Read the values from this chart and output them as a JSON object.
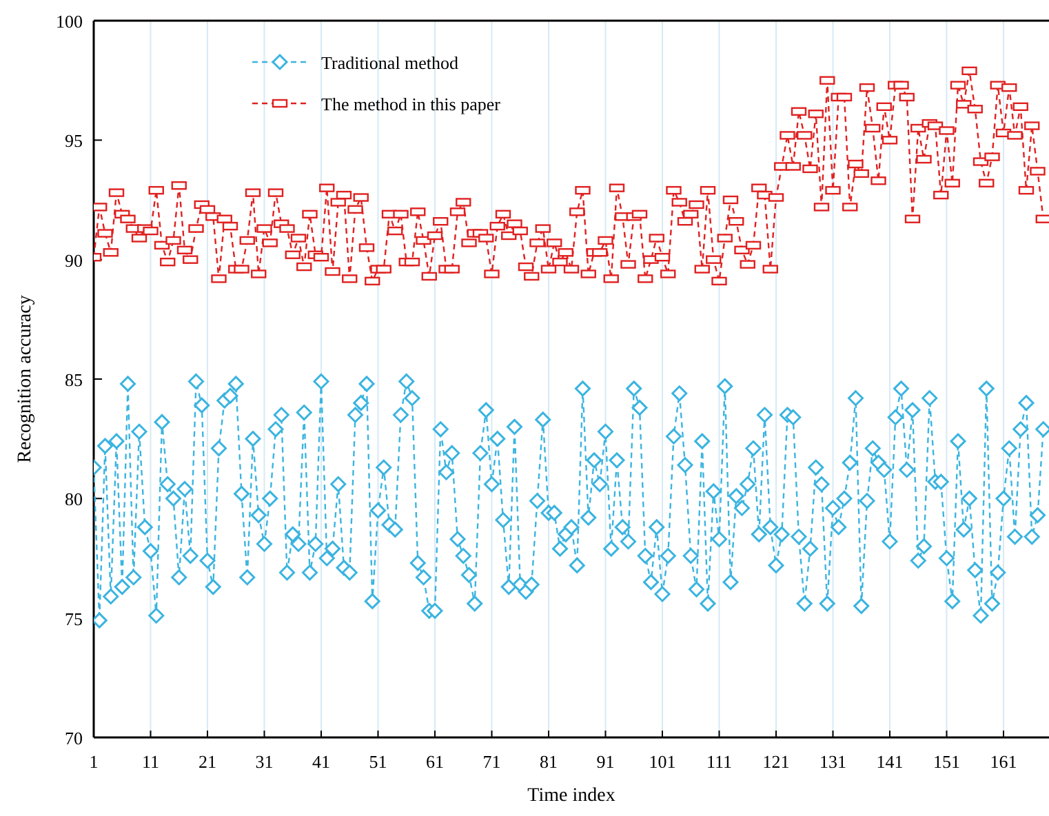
{
  "chart_data": {
    "type": "line",
    "xlabel": "Time index",
    "ylabel": "Recognition accuracy",
    "x": [
      1,
      2,
      3,
      4,
      5,
      6,
      7,
      8,
      9,
      10,
      11,
      12,
      13,
      14,
      15,
      16,
      17,
      18,
      19,
      20,
      21,
      22,
      23,
      24,
      25,
      26,
      27,
      28,
      29,
      30,
      31,
      32,
      33,
      34,
      35,
      36,
      37,
      38,
      39,
      40,
      41,
      42,
      43,
      44,
      45,
      46,
      47,
      48,
      49,
      50,
      51,
      52,
      53,
      54,
      55,
      56,
      57,
      58,
      59,
      60,
      61,
      62,
      63,
      64,
      65,
      66,
      67,
      68,
      69,
      70,
      71,
      72,
      73,
      74,
      75,
      76,
      77,
      78,
      79,
      80,
      81,
      82,
      83,
      84,
      85,
      86,
      87,
      88,
      89,
      90,
      91,
      92,
      93,
      94,
      95,
      96,
      97,
      98,
      99,
      100,
      101,
      102,
      103,
      104,
      105,
      106,
      107,
      108,
      109,
      110,
      111,
      112,
      113,
      114,
      115,
      116,
      117,
      118,
      119,
      120,
      121,
      122,
      123,
      124,
      125,
      126,
      127,
      128,
      129,
      130,
      131,
      132,
      133,
      134,
      135,
      136,
      137,
      138,
      139,
      140,
      141,
      142,
      143,
      144,
      145,
      146,
      147,
      148,
      149,
      150,
      151,
      152,
      153,
      154,
      155,
      156,
      157,
      158,
      159,
      160,
      161,
      162,
      163,
      164,
      165,
      166,
      167,
      168
    ],
    "series": [
      {
        "name": "Traditional method",
        "color": "#3bb4e0",
        "marker": "diamond",
        "values": [
          81.3,
          74.9,
          82.2,
          75.9,
          82.4,
          76.3,
          84.8,
          76.7,
          82.8,
          78.8,
          77.8,
          75.1,
          83.2,
          80.6,
          80.0,
          76.7,
          80.4,
          77.6,
          84.9,
          83.9,
          77.4,
          76.3,
          82.1,
          84.1,
          84.3,
          84.8,
          80.2,
          76.7,
          82.5,
          79.3,
          78.1,
          80.0,
          82.9,
          83.5,
          76.9,
          78.5,
          78.1,
          83.6,
          76.9,
          78.1,
          84.9,
          77.5,
          77.9,
          80.6,
          77.1,
          76.9,
          83.5,
          84.0,
          84.8,
          75.7,
          79.5,
          81.3,
          78.9,
          78.7,
          83.5,
          84.9,
          84.2,
          77.3,
          76.7,
          75.3,
          75.3,
          82.9,
          81.1,
          81.9,
          78.3,
          77.6,
          76.8,
          75.6,
          81.9,
          83.7,
          80.6,
          82.5,
          79.1,
          76.3,
          83.0,
          76.4,
          76.1,
          76.4,
          79.9,
          83.3,
          79.4,
          79.4,
          77.9,
          78.5,
          78.8,
          77.2,
          84.6,
          79.2,
          81.6,
          80.6,
          82.8,
          77.9,
          81.6,
          78.8,
          78.2,
          84.6,
          83.8,
          77.6,
          76.5,
          78.8,
          76.0,
          77.6,
          82.6,
          84.4,
          81.4,
          77.6,
          76.2,
          82.4,
          75.6,
          80.3,
          78.3,
          84.7,
          76.5,
          80.1,
          79.6,
          80.6,
          82.1,
          78.5,
          83.5,
          78.8,
          77.2,
          78.5,
          83.5,
          83.4,
          78.4,
          75.6,
          77.9,
          81.3,
          80.6,
          75.6,
          79.6,
          78.8,
          80.0,
          81.5,
          84.2,
          75.5,
          79.9,
          82.1,
          81.5,
          81.2,
          78.2,
          83.4,
          84.6,
          81.2,
          83.7,
          77.4,
          78.0,
          84.2,
          80.7,
          80.7,
          77.5,
          75.7,
          82.4,
          78.7,
          80.0,
          77.0,
          75.1,
          84.6,
          75.6,
          76.9,
          80.0,
          82.1,
          78.4,
          82.9,
          84.0,
          78.4,
          79.3,
          82.9
        ]
      },
      {
        "name": "The method in this paper",
        "color": "#e02020",
        "marker": "square",
        "values": [
          90.1,
          92.2,
          91.1,
          90.3,
          92.8,
          91.9,
          91.7,
          91.3,
          90.9,
          91.3,
          91.2,
          92.9,
          90.6,
          89.9,
          90.8,
          93.1,
          90.4,
          90.0,
          91.3,
          92.3,
          92.1,
          91.8,
          89.2,
          91.7,
          91.4,
          89.6,
          89.6,
          90.8,
          92.8,
          89.4,
          91.3,
          90.7,
          92.8,
          91.5,
          91.3,
          90.2,
          90.9,
          89.7,
          91.9,
          90.2,
          90.1,
          93.0,
          89.5,
          92.4,
          92.7,
          89.2,
          92.1,
          92.6,
          90.5,
          89.1,
          89.6,
          89.6,
          91.9,
          91.2,
          91.9,
          89.9,
          89.9,
          92.0,
          90.8,
          89.3,
          91.0,
          91.6,
          89.6,
          89.6,
          92.0,
          92.4,
          90.7,
          91.1,
          91.1,
          90.9,
          89.4,
          91.4,
          91.9,
          91.0,
          91.5,
          91.2,
          89.7,
          89.3,
          90.7,
          91.3,
          89.6,
          90.7,
          89.9,
          90.3,
          89.6,
          92.0,
          92.9,
          89.4,
          90.3,
          90.3,
          90.8,
          89.2,
          93.0,
          91.8,
          89.8,
          91.8,
          91.9,
          89.2,
          90.0,
          90.9,
          90.1,
          89.4,
          92.9,
          92.4,
          91.6,
          91.9,
          92.3,
          89.6,
          92.9,
          90.0,
          89.1,
          90.9,
          92.5,
          91.6,
          90.4,
          89.8,
          90.6,
          93.0,
          92.7,
          89.6,
          92.6,
          93.9,
          95.2,
          93.9,
          96.2,
          95.2,
          93.8,
          96.1,
          92.2,
          97.5,
          92.9,
          96.8,
          96.8,
          92.2,
          94.0,
          93.6,
          97.2,
          95.5,
          93.3,
          96.4,
          95.0,
          97.3,
          97.3,
          96.8,
          91.7,
          95.5,
          94.2,
          95.7,
          95.6,
          92.7,
          95.4,
          93.2,
          97.3,
          96.5,
          97.9,
          96.3,
          94.1,
          93.2,
          94.3,
          97.3,
          95.3,
          97.2,
          95.2,
          96.4,
          92.9,
          95.6,
          93.7,
          91.7
        ]
      }
    ],
    "xlim": [
      1,
      169
    ],
    "xticks": [
      1,
      11,
      21,
      31,
      41,
      51,
      61,
      71,
      81,
      91,
      101,
      111,
      121,
      131,
      141,
      151,
      161
    ],
    "ylim": [
      70,
      100
    ],
    "yticks": [
      70,
      75,
      80,
      85,
      90,
      95,
      100
    ],
    "grid": "x",
    "legend": "top left",
    "line_style": "dashed"
  }
}
